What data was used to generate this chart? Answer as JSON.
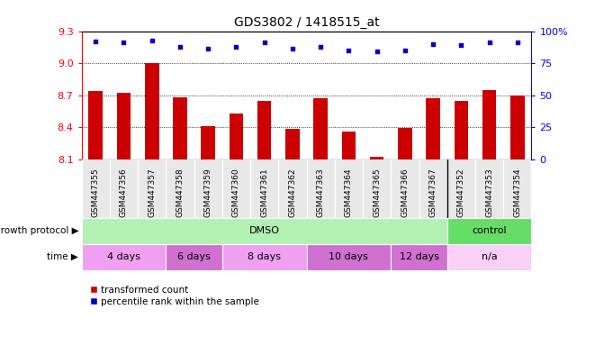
{
  "title": "GDS3802 / 1418515_at",
  "samples": [
    "GSM447355",
    "GSM447356",
    "GSM447357",
    "GSM447358",
    "GSM447359",
    "GSM447360",
    "GSM447361",
    "GSM447362",
    "GSM447363",
    "GSM447364",
    "GSM447365",
    "GSM447366",
    "GSM447367",
    "GSM447352",
    "GSM447353",
    "GSM447354"
  ],
  "transformed_count": [
    8.74,
    8.72,
    9.0,
    8.68,
    8.41,
    8.53,
    8.65,
    8.38,
    8.67,
    8.36,
    8.12,
    8.39,
    8.67,
    8.65,
    8.75,
    8.7
  ],
  "percentile_rank": [
    92,
    91,
    93,
    88,
    86,
    88,
    91,
    86,
    88,
    85,
    84,
    85,
    90,
    89,
    91,
    91
  ],
  "ylim_left": [
    8.1,
    9.3
  ],
  "ylim_right": [
    0,
    100
  ],
  "yticks_left": [
    8.1,
    8.4,
    8.7,
    9.0,
    9.3
  ],
  "yticks_right": [
    0,
    25,
    50,
    75,
    100
  ],
  "bar_color": "#cc0000",
  "dot_color": "#0000cc",
  "bar_width": 0.5,
  "growth_protocol_groups": [
    {
      "label": "DMSO",
      "start": 0,
      "end": 13,
      "color": "#b3f0b3"
    },
    {
      "label": "control",
      "start": 13,
      "end": 16,
      "color": "#66dd66"
    }
  ],
  "time_groups": [
    {
      "label": "4 days",
      "start": 0,
      "end": 3,
      "color": "#f0a0f0"
    },
    {
      "label": "6 days",
      "start": 3,
      "end": 5,
      "color": "#d070d0"
    },
    {
      "label": "8 days",
      "start": 5,
      "end": 8,
      "color": "#f0a0f0"
    },
    {
      "label": "10 days",
      "start": 8,
      "end": 11,
      "color": "#d070d0"
    },
    {
      "label": "12 days",
      "start": 11,
      "end": 13,
      "color": "#d070d0"
    },
    {
      "label": "n/a",
      "start": 13,
      "end": 16,
      "color": "#f8d0f8"
    }
  ],
  "legend_items": [
    {
      "label": "transformed count",
      "color": "#cc0000",
      "marker": "s"
    },
    {
      "label": "percentile rank within the sample",
      "color": "#0000cc",
      "marker": "s"
    }
  ]
}
